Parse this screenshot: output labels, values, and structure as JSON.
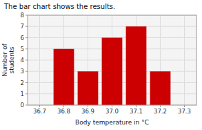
{
  "chart_data": {
    "type": "bar",
    "title": "The bar chart shows the results.",
    "x": [
      36.7,
      36.8,
      36.9,
      37.0,
      37.1,
      37.2,
      37.3
    ],
    "values": [
      0,
      5,
      3,
      6,
      7,
      3,
      0
    ],
    "color": "#cc0000",
    "xlabel": "Body temperature in °C",
    "ylabel": "Number of\nstudents",
    "xlim": [
      36.65,
      37.35
    ],
    "xticks": [
      36.7,
      36.8,
      36.9,
      {
        "value": 37.0,
        "label": "37.0"
      },
      37.1,
      37.2,
      37.3
    ],
    "ylim": [
      0,
      8
    ],
    "yticks": [
      0,
      1,
      2,
      3,
      4,
      5,
      6,
      7,
      8
    ],
    "grid": true
  }
}
